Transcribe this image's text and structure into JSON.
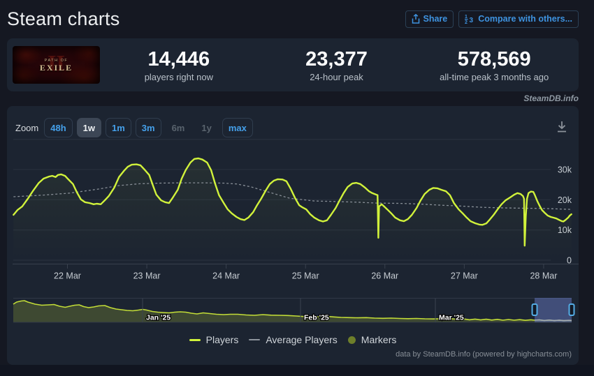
{
  "page": {
    "title": "Steam charts",
    "watermark": "SteamDB.info",
    "credit": "data by SteamDB.info (powered by highcharts.com)"
  },
  "header_buttons": {
    "share": "Share",
    "compare": "Compare with others..."
  },
  "stats": {
    "game": {
      "line1": "PATH OF",
      "line2": "EXILE",
      "line3": "II"
    },
    "items": [
      {
        "key": "current",
        "value": "14,446",
        "label": "players right now"
      },
      {
        "key": "peak24",
        "value": "23,377",
        "label": "24-hour peak"
      },
      {
        "key": "alltime",
        "value": "578,569",
        "label": "all-time peak 3 months ago"
      }
    ]
  },
  "toolbar": {
    "zoom_label": "Zoom",
    "buttons": [
      {
        "label": "48h",
        "state": "normal"
      },
      {
        "label": "1w",
        "state": "selected"
      },
      {
        "label": "1m",
        "state": "normal"
      },
      {
        "label": "3m",
        "state": "normal"
      },
      {
        "label": "6m",
        "state": "disabled"
      },
      {
        "label": "1y",
        "state": "disabled"
      },
      {
        "label": "max",
        "state": "normal"
      }
    ]
  },
  "legend": [
    {
      "label": "Players",
      "type": "line",
      "color": "#d1f23b"
    },
    {
      "label": "Average Players",
      "type": "line",
      "color": "#8d949c"
    },
    {
      "label": "Markers",
      "type": "circle",
      "color": "#6e7f2a"
    }
  ],
  "colors": {
    "accent_line": "#d1f23b",
    "average_line": "#8d949c",
    "blue": "#3e93e0",
    "panel": "#1c2431"
  },
  "chart_data": {
    "type": "line",
    "title": "",
    "x_axis": {
      "labels": [
        "22 Mar",
        "23 Mar",
        "24 Mar",
        "25 Mar",
        "26 Mar",
        "27 Mar",
        "28 Mar"
      ],
      "unit": "days_from_22_mar"
    },
    "y_axis": {
      "unit": "thousands_of_players",
      "ticks": [
        [
          40,
          ""
        ],
        [
          30,
          "30k"
        ],
        [
          20,
          "20k"
        ],
        [
          10,
          "10k"
        ],
        [
          0,
          "0"
        ]
      ]
    },
    "players_series": [
      [
        -0.68,
        15.0
      ],
      [
        -0.63,
        16.6
      ],
      [
        -0.57,
        17.8
      ],
      [
        -0.5,
        20.3
      ],
      [
        -0.43,
        23.1
      ],
      [
        -0.36,
        25.6
      ],
      [
        -0.3,
        27.0
      ],
      [
        -0.23,
        27.7
      ],
      [
        -0.19,
        27.9
      ],
      [
        -0.15,
        27.5
      ],
      [
        -0.12,
        28.2
      ],
      [
        -0.08,
        28.4
      ],
      [
        -0.03,
        27.9
      ],
      [
        0.01,
        26.8
      ],
      [
        0.07,
        25.2
      ],
      [
        0.12,
        22.4
      ],
      [
        0.17,
        20.1
      ],
      [
        0.22,
        19.2
      ],
      [
        0.28,
        18.9
      ],
      [
        0.33,
        18.5
      ],
      [
        0.37,
        18.7
      ],
      [
        0.42,
        18.5
      ],
      [
        0.47,
        19.8
      ],
      [
        0.52,
        21.2
      ],
      [
        0.59,
        24.0
      ],
      [
        0.65,
        27.5
      ],
      [
        0.71,
        29.5
      ],
      [
        0.76,
        30.9
      ],
      [
        0.81,
        31.6
      ],
      [
        0.87,
        31.7
      ],
      [
        0.92,
        31.4
      ],
      [
        0.97,
        30.0
      ],
      [
        1.03,
        28.2
      ],
      [
        1.08,
        24.5
      ],
      [
        1.12,
        21.7
      ],
      [
        1.18,
        19.8
      ],
      [
        1.23,
        19.2
      ],
      [
        1.28,
        18.9
      ],
      [
        1.33,
        20.8
      ],
      [
        1.39,
        23.3
      ],
      [
        1.44,
        27.0
      ],
      [
        1.49,
        29.8
      ],
      [
        1.55,
        32.3
      ],
      [
        1.6,
        33.5
      ],
      [
        1.65,
        33.7
      ],
      [
        1.7,
        33.3
      ],
      [
        1.76,
        32.3
      ],
      [
        1.81,
        29.8
      ],
      [
        1.86,
        25.4
      ],
      [
        1.91,
        21.5
      ],
      [
        1.97,
        18.9
      ],
      [
        2.02,
        16.8
      ],
      [
        2.07,
        15.5
      ],
      [
        2.13,
        14.3
      ],
      [
        2.18,
        13.6
      ],
      [
        2.23,
        13.3
      ],
      [
        2.28,
        14.1
      ],
      [
        2.34,
        15.9
      ],
      [
        2.39,
        18.2
      ],
      [
        2.44,
        20.3
      ],
      [
        2.5,
        23.1
      ],
      [
        2.55,
        25.2
      ],
      [
        2.6,
        26.3
      ],
      [
        2.65,
        26.8
      ],
      [
        2.71,
        26.7
      ],
      [
        2.76,
        26.1
      ],
      [
        2.81,
        23.8
      ],
      [
        2.87,
        20.5
      ],
      [
        2.92,
        18.2
      ],
      [
        2.96,
        17.5
      ],
      [
        3.01,
        16.8
      ],
      [
        3.06,
        15.2
      ],
      [
        3.11,
        14.1
      ],
      [
        3.17,
        13.2
      ],
      [
        3.22,
        12.8
      ],
      [
        3.27,
        13.2
      ],
      [
        3.32,
        15.0
      ],
      [
        3.38,
        17.3
      ],
      [
        3.43,
        19.8
      ],
      [
        3.48,
        22.2
      ],
      [
        3.53,
        24.2
      ],
      [
        3.59,
        25.4
      ],
      [
        3.64,
        25.6
      ],
      [
        3.69,
        25.2
      ],
      [
        3.75,
        24.0
      ],
      [
        3.8,
        22.8
      ],
      [
        3.84,
        22.2
      ],
      [
        3.89,
        21.7
      ],
      [
        3.908,
        21.5
      ],
      [
        3.917,
        7.4
      ],
      [
        3.926,
        17.8
      ],
      [
        3.96,
        18.5
      ],
      [
        3.99,
        17.8
      ],
      [
        4.03,
        16.8
      ],
      [
        4.08,
        15.5
      ],
      [
        4.13,
        14.1
      ],
      [
        4.19,
        13.2
      ],
      [
        4.24,
        12.9
      ],
      [
        4.29,
        13.6
      ],
      [
        4.34,
        15.0
      ],
      [
        4.4,
        17.3
      ],
      [
        4.45,
        19.8
      ],
      [
        4.5,
        21.9
      ],
      [
        4.56,
        23.3
      ],
      [
        4.61,
        23.9
      ],
      [
        4.66,
        23.8
      ],
      [
        4.71,
        23.3
      ],
      [
        4.77,
        22.8
      ],
      [
        4.82,
        21.5
      ],
      [
        4.87,
        18.9
      ],
      [
        4.93,
        16.8
      ],
      [
        4.98,
        15.5
      ],
      [
        5.03,
        14.1
      ],
      [
        5.08,
        12.9
      ],
      [
        5.14,
        12.2
      ],
      [
        5.19,
        11.8
      ],
      [
        5.23,
        11.7
      ],
      [
        5.28,
        12.2
      ],
      [
        5.32,
        13.4
      ],
      [
        5.37,
        15.0
      ],
      [
        5.42,
        16.8
      ],
      [
        5.47,
        18.5
      ],
      [
        5.52,
        19.8
      ],
      [
        5.58,
        20.8
      ],
      [
        5.63,
        21.7
      ],
      [
        5.67,
        22.2
      ],
      [
        5.71,
        21.9
      ],
      [
        5.74,
        21.2
      ],
      [
        5.753,
        20.3
      ],
      [
        5.761,
        4.8
      ],
      [
        5.775,
        14.5
      ],
      [
        5.79,
        20.3
      ],
      [
        5.81,
        22.2
      ],
      [
        5.84,
        22.7
      ],
      [
        5.87,
        22.6
      ],
      [
        5.89,
        21.5
      ],
      [
        5.92,
        19.6
      ],
      [
        5.95,
        18.0
      ],
      [
        5.98,
        16.6
      ],
      [
        6.02,
        15.5
      ],
      [
        6.05,
        14.8
      ],
      [
        6.09,
        14.3
      ],
      [
        6.12,
        14.1
      ],
      [
        6.16,
        13.8
      ],
      [
        6.19,
        13.4
      ],
      [
        6.23,
        12.9
      ],
      [
        6.25,
        12.8
      ],
      [
        6.28,
        13.4
      ],
      [
        6.31,
        14.1
      ],
      [
        6.33,
        14.8
      ],
      [
        6.35,
        15.2
      ]
    ],
    "average_series": [
      [
        -0.68,
        21.0
      ],
      [
        -0.32,
        21.5
      ],
      [
        0.03,
        22.2
      ],
      [
        0.38,
        23.5
      ],
      [
        0.65,
        24.7
      ],
      [
        0.91,
        25.3
      ],
      [
        1.18,
        25.5
      ],
      [
        1.44,
        25.6
      ],
      [
        1.7,
        25.6
      ],
      [
        1.97,
        25.5
      ],
      [
        2.14,
        25.2
      ],
      [
        2.32,
        24.2
      ],
      [
        2.5,
        22.8
      ],
      [
        2.67,
        21.5
      ],
      [
        2.8,
        20.5
      ],
      [
        2.94,
        20.1
      ],
      [
        3.11,
        19.6
      ],
      [
        3.38,
        19.4
      ],
      [
        3.64,
        19.2
      ],
      [
        3.9,
        18.9
      ],
      [
        4.17,
        18.8
      ],
      [
        4.43,
        18.6
      ],
      [
        4.7,
        18.2
      ],
      [
        4.96,
        17.9
      ],
      [
        5.23,
        17.5
      ],
      [
        5.49,
        17.3
      ],
      [
        5.75,
        17.2
      ],
      [
        6.02,
        17.1
      ],
      [
        6.35,
        16.8
      ]
    ],
    "navigator": {
      "months": [
        {
          "f": 0.2316,
          "label": "Jan '25"
        },
        {
          "f": 0.5144,
          "label": "Feb '25"
        },
        {
          "f": 0.7559,
          "label": "Mar '25"
        }
      ],
      "selection": {
        "from": 0.9337,
        "to": 1.0
      },
      "series": [
        [
          0,
          429
        ],
        [
          0.006,
          479
        ],
        [
          0.014,
          503
        ],
        [
          0.02,
          512
        ],
        [
          0.026,
          479
        ],
        [
          0.039,
          429
        ],
        [
          0.051,
          404
        ],
        [
          0.064,
          413
        ],
        [
          0.073,
          421
        ],
        [
          0.083,
          380
        ],
        [
          0.093,
          355
        ],
        [
          0.101,
          380
        ],
        [
          0.11,
          404
        ],
        [
          0.118,
          413
        ],
        [
          0.126,
          371
        ],
        [
          0.135,
          347
        ],
        [
          0.144,
          363
        ],
        [
          0.153,
          388
        ],
        [
          0.164,
          396
        ],
        [
          0.174,
          347
        ],
        [
          0.184,
          314
        ],
        [
          0.194,
          297
        ],
        [
          0.204,
          281
        ],
        [
          0.214,
          272
        ],
        [
          0.224,
          289
        ],
        [
          0.232,
          305
        ],
        [
          0.239,
          289
        ],
        [
          0.249,
          256
        ],
        [
          0.259,
          239
        ],
        [
          0.269,
          231
        ],
        [
          0.279,
          223
        ],
        [
          0.289,
          239
        ],
        [
          0.299,
          248
        ],
        [
          0.309,
          239
        ],
        [
          0.319,
          215
        ],
        [
          0.329,
          198
        ],
        [
          0.34,
          223
        ],
        [
          0.352,
          206
        ],
        [
          0.364,
          190
        ],
        [
          0.377,
          182
        ],
        [
          0.389,
          190
        ],
        [
          0.402,
          190
        ],
        [
          0.417,
          173
        ],
        [
          0.432,
          165
        ],
        [
          0.447,
          182
        ],
        [
          0.462,
          168
        ],
        [
          0.477,
          165
        ],
        [
          0.492,
          160
        ],
        [
          0.507,
          149
        ],
        [
          0.522,
          135
        ],
        [
          0.537,
          127
        ],
        [
          0.549,
          132
        ],
        [
          0.562,
          139
        ],
        [
          0.574,
          127
        ],
        [
          0.587,
          116
        ],
        [
          0.602,
          111
        ],
        [
          0.617,
          106
        ],
        [
          0.632,
          111
        ],
        [
          0.647,
          99
        ],
        [
          0.662,
          94
        ],
        [
          0.677,
          99
        ],
        [
          0.692,
          91
        ],
        [
          0.707,
          86
        ],
        [
          0.722,
          91
        ],
        [
          0.737,
          83
        ],
        [
          0.752,
          79
        ],
        [
          0.767,
          83
        ],
        [
          0.777,
          66
        ],
        [
          0.787,
          83
        ],
        [
          0.797,
          63
        ],
        [
          0.807,
          79
        ],
        [
          0.817,
          59
        ],
        [
          0.827,
          76
        ],
        [
          0.837,
          56
        ],
        [
          0.847,
          73
        ],
        [
          0.857,
          53
        ],
        [
          0.867,
          69
        ],
        [
          0.877,
          50
        ],
        [
          0.887,
          66
        ],
        [
          0.897,
          50
        ],
        [
          0.907,
          63
        ],
        [
          0.917,
          46
        ],
        [
          0.927,
          59
        ],
        [
          0.933,
          50
        ],
        [
          0.942,
          56
        ],
        [
          0.951,
          43
        ],
        [
          0.96,
          53
        ],
        [
          0.969,
          41
        ],
        [
          0.978,
          50
        ],
        [
          0.986,
          40
        ],
        [
          0.995,
          46
        ],
        [
          1,
          43
        ]
      ]
    }
  }
}
